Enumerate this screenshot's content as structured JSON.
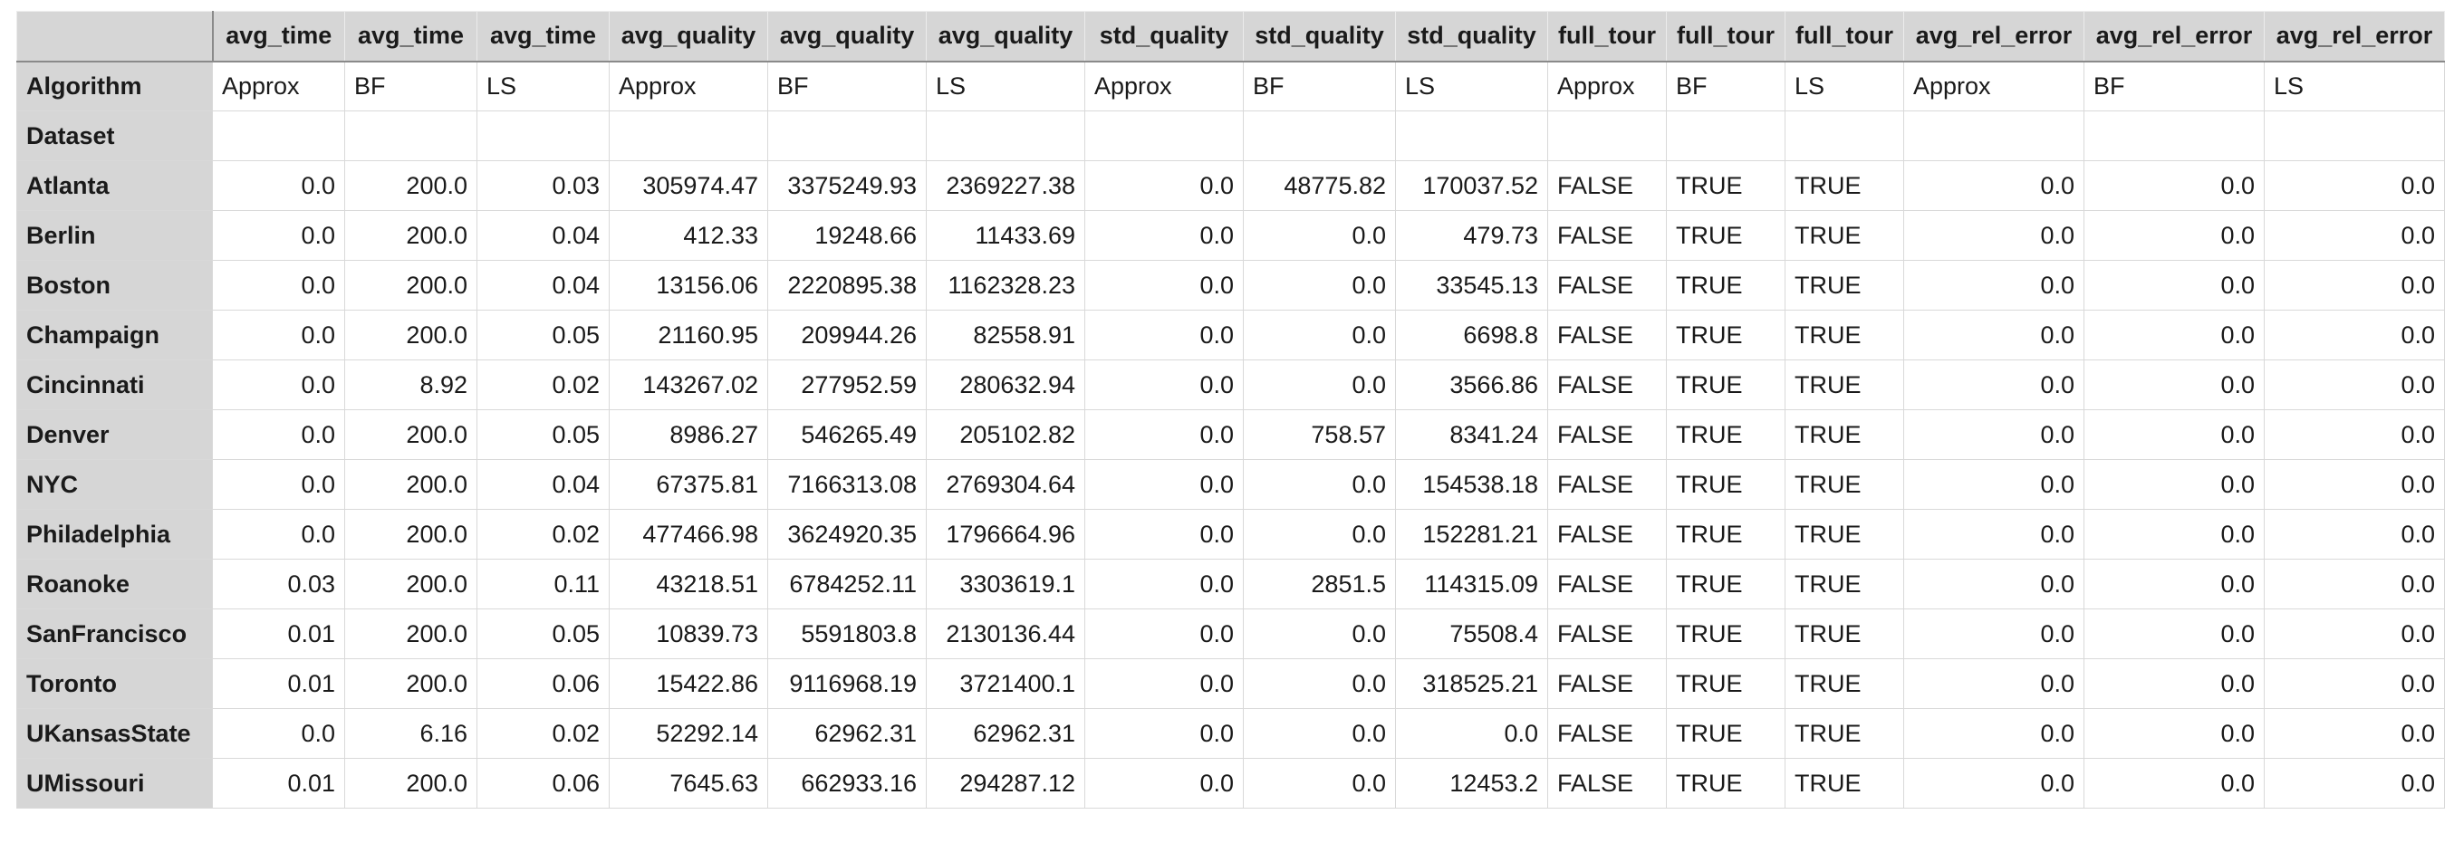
{
  "column_headers": [
    "avg_time",
    "avg_time",
    "avg_time",
    "avg_quality",
    "avg_quality",
    "avg_quality",
    "std_quality",
    "std_quality",
    "std_quality",
    "full_tour",
    "full_tour",
    "full_tour",
    "avg_rel_error",
    "avg_rel_error",
    "avg_rel_error"
  ],
  "algorithm_row": {
    "label": "Algorithm",
    "values": [
      "Approx",
      "BF",
      "LS",
      "Approx",
      "BF",
      "LS",
      "Approx",
      "BF",
      "LS",
      "Approx",
      "BF",
      "LS",
      "Approx",
      "BF",
      "LS"
    ]
  },
  "dataset_row": {
    "label": "Dataset"
  },
  "rows": [
    {
      "name": "Atlanta",
      "values": [
        "0.0",
        "200.0",
        "0.03",
        "305974.47",
        "3375249.93",
        "2369227.38",
        "0.0",
        "48775.82",
        "170037.52",
        "FALSE",
        "TRUE",
        "TRUE",
        "0.0",
        "0.0",
        "0.0"
      ]
    },
    {
      "name": "Berlin",
      "values": [
        "0.0",
        "200.0",
        "0.04",
        "412.33",
        "19248.66",
        "11433.69",
        "0.0",
        "0.0",
        "479.73",
        "FALSE",
        "TRUE",
        "TRUE",
        "0.0",
        "0.0",
        "0.0"
      ]
    },
    {
      "name": "Boston",
      "values": [
        "0.0",
        "200.0",
        "0.04",
        "13156.06",
        "2220895.38",
        "1162328.23",
        "0.0",
        "0.0",
        "33545.13",
        "FALSE",
        "TRUE",
        "TRUE",
        "0.0",
        "0.0",
        "0.0"
      ]
    },
    {
      "name": "Champaign",
      "values": [
        "0.0",
        "200.0",
        "0.05",
        "21160.95",
        "209944.26",
        "82558.91",
        "0.0",
        "0.0",
        "6698.8",
        "FALSE",
        "TRUE",
        "TRUE",
        "0.0",
        "0.0",
        "0.0"
      ]
    },
    {
      "name": "Cincinnati",
      "values": [
        "0.0",
        "8.92",
        "0.02",
        "143267.02",
        "277952.59",
        "280632.94",
        "0.0",
        "0.0",
        "3566.86",
        "FALSE",
        "TRUE",
        "TRUE",
        "0.0",
        "0.0",
        "0.0"
      ]
    },
    {
      "name": "Denver",
      "values": [
        "0.0",
        "200.0",
        "0.05",
        "8986.27",
        "546265.49",
        "205102.82",
        "0.0",
        "758.57",
        "8341.24",
        "FALSE",
        "TRUE",
        "TRUE",
        "0.0",
        "0.0",
        "0.0"
      ]
    },
    {
      "name": "NYC",
      "values": [
        "0.0",
        "200.0",
        "0.04",
        "67375.81",
        "7166313.08",
        "2769304.64",
        "0.0",
        "0.0",
        "154538.18",
        "FALSE",
        "TRUE",
        "TRUE",
        "0.0",
        "0.0",
        "0.0"
      ]
    },
    {
      "name": "Philadelphia",
      "values": [
        "0.0",
        "200.0",
        "0.02",
        "477466.98",
        "3624920.35",
        "1796664.96",
        "0.0",
        "0.0",
        "152281.21",
        "FALSE",
        "TRUE",
        "TRUE",
        "0.0",
        "0.0",
        "0.0"
      ]
    },
    {
      "name": "Roanoke",
      "values": [
        "0.03",
        "200.0",
        "0.11",
        "43218.51",
        "6784252.11",
        "3303619.1",
        "0.0",
        "2851.5",
        "114315.09",
        "FALSE",
        "TRUE",
        "TRUE",
        "0.0",
        "0.0",
        "0.0"
      ]
    },
    {
      "name": "SanFrancisco",
      "values": [
        "0.01",
        "200.0",
        "0.05",
        "10839.73",
        "5591803.8",
        "2130136.44",
        "0.0",
        "0.0",
        "75508.4",
        "FALSE",
        "TRUE",
        "TRUE",
        "0.0",
        "0.0",
        "0.0"
      ]
    },
    {
      "name": "Toronto",
      "values": [
        "0.01",
        "200.0",
        "0.06",
        "15422.86",
        "9116968.19",
        "3721400.1",
        "0.0",
        "0.0",
        "318525.21",
        "FALSE",
        "TRUE",
        "TRUE",
        "0.0",
        "0.0",
        "0.0"
      ]
    },
    {
      "name": "UKansasState",
      "values": [
        "0.0",
        "6.16",
        "0.02",
        "52292.14",
        "62962.31",
        "62962.31",
        "0.0",
        "0.0",
        "0.0",
        "FALSE",
        "TRUE",
        "TRUE",
        "0.0",
        "0.0",
        "0.0"
      ]
    },
    {
      "name": "UMissouri",
      "values": [
        "0.01",
        "200.0",
        "0.06",
        "7645.63",
        "662933.16",
        "294287.12",
        "0.0",
        "0.0",
        "12453.2",
        "FALSE",
        "TRUE",
        "TRUE",
        "0.0",
        "0.0",
        "0.0"
      ]
    }
  ]
}
